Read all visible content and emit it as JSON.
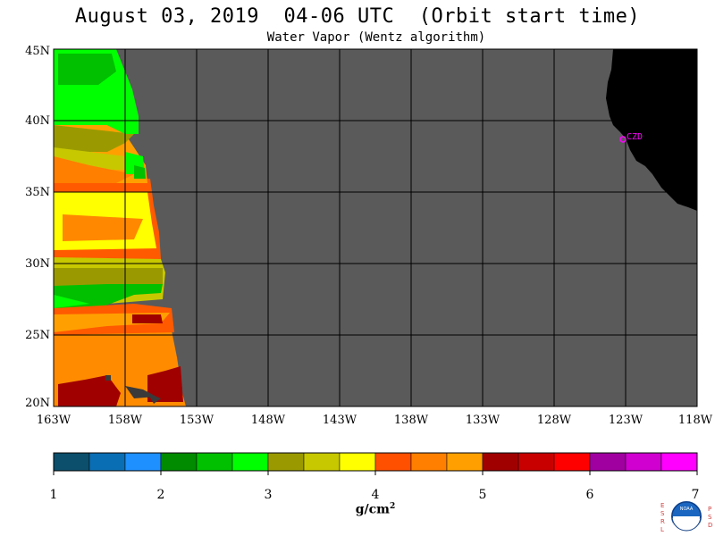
{
  "title": "August 03, 2019  04-06 UTC  (Orbit start time)",
  "subtitle": "Water Vapor (Wentz algorithm)",
  "map": {
    "lat_labels": [
      "45N",
      "40N",
      "35N",
      "30N",
      "25N",
      "20N"
    ],
    "lon_labels": [
      "163W",
      "158W",
      "153W",
      "148W",
      "143W",
      "138W",
      "133W",
      "128W",
      "123W",
      "118W"
    ],
    "station_label": "CZD",
    "colors": {
      "no_data": "#5a5a5a",
      "land": "#000000",
      "grid": "#000000",
      "station": "#ff00ff"
    }
  },
  "colorbar": {
    "tick_labels": [
      "1",
      "2",
      "3",
      "4",
      "5",
      "6",
      "7"
    ],
    "unit_base": "g/cm",
    "unit_exp": "2",
    "colors": [
      "#0b4f6c",
      "#0a6eb4",
      "#1e90ff",
      "#008b00",
      "#00c000",
      "#00ff00",
      "#9a9a00",
      "#c8c800",
      "#ffff00",
      "#ff5000",
      "#ff7f00",
      "#ffa000",
      "#a00000",
      "#c80000",
      "#ff0000",
      "#a000a0",
      "#d000d0",
      "#ff00ff"
    ]
  },
  "logo": {
    "left_text": "ESRL",
    "right_text": "PSD",
    "center_text": "NOAA"
  }
}
